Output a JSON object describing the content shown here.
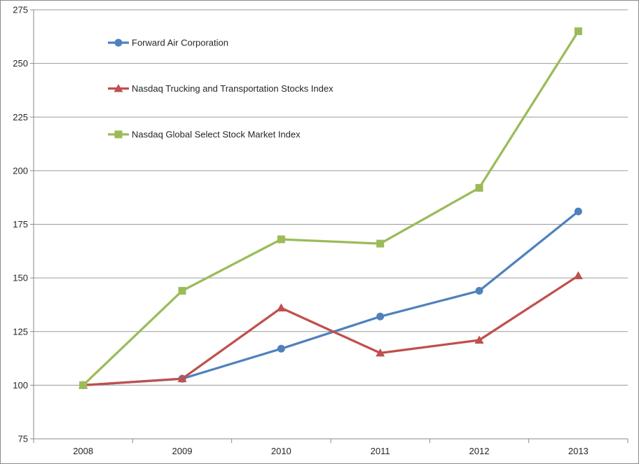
{
  "chart_data": {
    "type": "line",
    "title": "",
    "xlabel": "",
    "ylabel": "",
    "categories": [
      "2008",
      "2009",
      "2010",
      "2011",
      "2012",
      "2013"
    ],
    "series": [
      {
        "name": "Forward Air Corporation",
        "color": "#4F81BD",
        "marker": "circle",
        "values": [
          100,
          103,
          117,
          132,
          144,
          181
        ]
      },
      {
        "name": "Nasdaq Trucking and Transportation Stocks Index",
        "color": "#C0504D",
        "marker": "triangle",
        "values": [
          100,
          103,
          136,
          115,
          121,
          151
        ]
      },
      {
        "name": "Nasdaq Global Select Stock Market Index",
        "color": "#9BBB59",
        "marker": "square",
        "values": [
          100,
          144,
          168,
          166,
          192,
          265
        ]
      }
    ],
    "ylim": [
      75,
      275
    ],
    "yticks": [
      75,
      100,
      125,
      150,
      175,
      200,
      225,
      250,
      275
    ],
    "grid": "horizontal",
    "legend_position": "inside-top-left",
    "colors": {
      "axis": "#8A8A8A",
      "gridline": "#9A9A9A",
      "text": "#262626",
      "background": "#FFFFFF",
      "frame_border": "#8C8C8C"
    }
  }
}
